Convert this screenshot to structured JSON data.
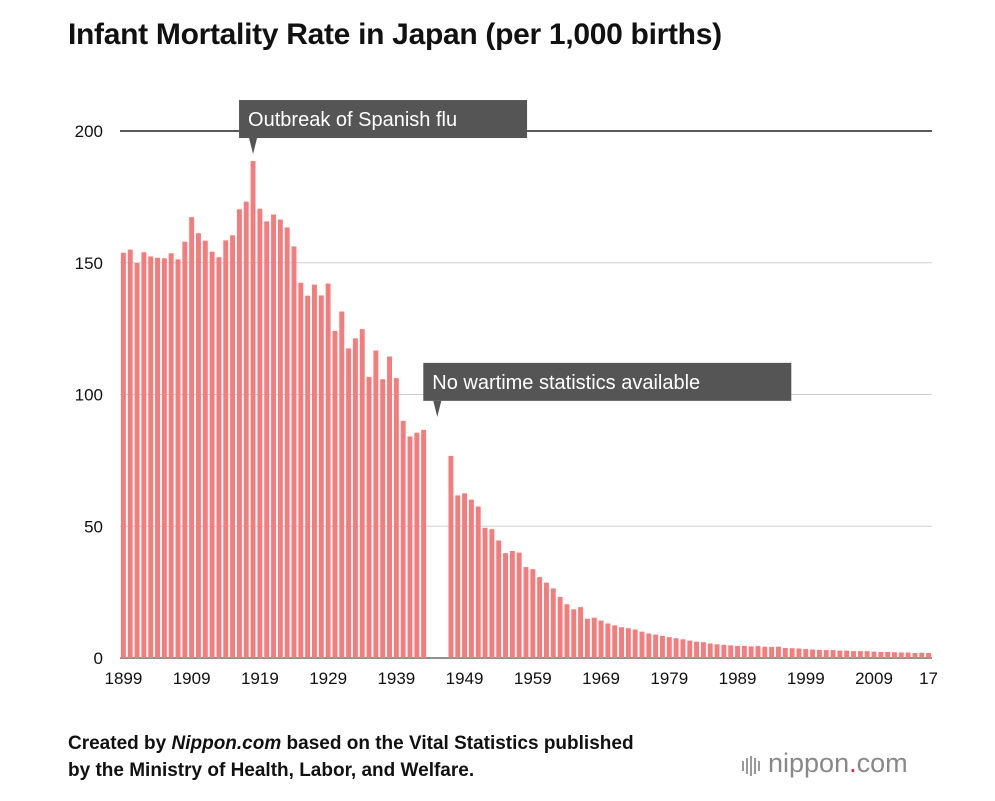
{
  "chart_data": {
    "type": "bar",
    "title": "Infant Mortality Rate in Japan (per 1,000 births)",
    "ylim": [
      0,
      200
    ],
    "y_ticks": [
      "0",
      "50",
      "100",
      "150",
      "200"
    ],
    "x_tick_labels": [
      {
        "year": 1899,
        "label": "1899"
      },
      {
        "year": 1909,
        "label": "1909"
      },
      {
        "year": 1919,
        "label": "1919"
      },
      {
        "year": 1929,
        "label": "1929"
      },
      {
        "year": 1939,
        "label": "1939"
      },
      {
        "year": 1949,
        "label": "1949"
      },
      {
        "year": 1959,
        "label": "1959"
      },
      {
        "year": 1969,
        "label": "1969"
      },
      {
        "year": 1979,
        "label": "1979"
      },
      {
        "year": 1989,
        "label": "1989"
      },
      {
        "year": 1999,
        "label": "1999"
      },
      {
        "year": 2009,
        "label": "2009"
      },
      {
        "year": 2017,
        "label": "17"
      }
    ],
    "grid": true,
    "bar_color": "#f47c7c",
    "series": [
      {
        "years": [
          1899,
          1900,
          1901,
          1902,
          1903,
          1904,
          1905,
          1906,
          1907,
          1908,
          1909,
          1910,
          1911,
          1912,
          1913,
          1914,
          1915,
          1916,
          1917,
          1918,
          1919,
          1920,
          1921,
          1922,
          1923,
          1924,
          1925,
          1926,
          1927,
          1928,
          1929,
          1930,
          1931,
          1932,
          1933,
          1934,
          1935,
          1936,
          1937,
          1938,
          1939,
          1940,
          1941,
          1942,
          1943,
          1947,
          1948,
          1949,
          1950,
          1951,
          1952,
          1953,
          1954,
          1955,
          1956,
          1957,
          1958,
          1959,
          1960,
          1961,
          1962,
          1963,
          1964,
          1965,
          1966,
          1967,
          1968,
          1969,
          1970,
          1971,
          1972,
          1973,
          1974,
          1975,
          1976,
          1977,
          1978,
          1979,
          1980,
          1981,
          1982,
          1983,
          1984,
          1985,
          1986,
          1987,
          1988,
          1989,
          1990,
          1991,
          1992,
          1993,
          1994,
          1995,
          1996,
          1997,
          1998,
          1999,
          2000,
          2001,
          2002,
          2003,
          2004,
          2005,
          2006,
          2007,
          2008,
          2009,
          2010,
          2011,
          2012,
          2013,
          2014,
          2015,
          2016,
          2017
        ],
        "values": [
          153.8,
          155.0,
          149.9,
          154.0,
          152.4,
          151.9,
          151.7,
          153.6,
          151.3,
          158.0,
          167.3,
          161.2,
          158.4,
          154.2,
          152.1,
          158.5,
          160.4,
          170.3,
          173.2,
          188.6,
          170.5,
          165.7,
          168.3,
          166.4,
          163.4,
          156.2,
          142.4,
          137.5,
          141.7,
          137.6,
          142.1,
          124.1,
          131.5,
          117.5,
          121.3,
          124.8,
          106.7,
          116.7,
          105.8,
          114.4,
          106.2,
          90.0,
          84.1,
          85.5,
          86.6,
          76.7,
          61.7,
          62.5,
          60.1,
          57.5,
          49.4,
          48.9,
          44.6,
          39.8,
          40.6,
          40.0,
          34.5,
          33.7,
          30.7,
          28.6,
          26.4,
          23.2,
          20.4,
          18.5,
          19.3,
          14.9,
          15.3,
          14.2,
          13.1,
          12.4,
          11.7,
          11.3,
          10.8,
          10.0,
          9.3,
          8.9,
          8.4,
          7.9,
          7.5,
          7.1,
          6.6,
          6.2,
          6.0,
          5.5,
          5.2,
          5.0,
          4.8,
          4.6,
          4.6,
          4.4,
          4.5,
          4.3,
          4.2,
          4.3,
          3.8,
          3.7,
          3.6,
          3.4,
          3.2,
          3.1,
          3.0,
          3.0,
          2.8,
          2.8,
          2.6,
          2.6,
          2.6,
          2.4,
          2.3,
          2.3,
          2.2,
          2.1,
          2.1,
          1.9,
          2.0,
          1.9
        ]
      }
    ],
    "annotations": [
      {
        "text": "Outbreak of Spanish flu",
        "year": 1918
      },
      {
        "text": "No wartime statistics available",
        "year": 1945
      }
    ]
  },
  "footer": {
    "line1_prefix": "Created by ",
    "line1_source": "Nippon.com",
    "line1_suffix": " based on the Vital Statistics published",
    "line2": "by the Ministry of Health, Labor, and Welfare."
  },
  "logo": {
    "name": "nippon",
    "dot": ".",
    "tld": "com",
    "color": "#e5252f"
  }
}
